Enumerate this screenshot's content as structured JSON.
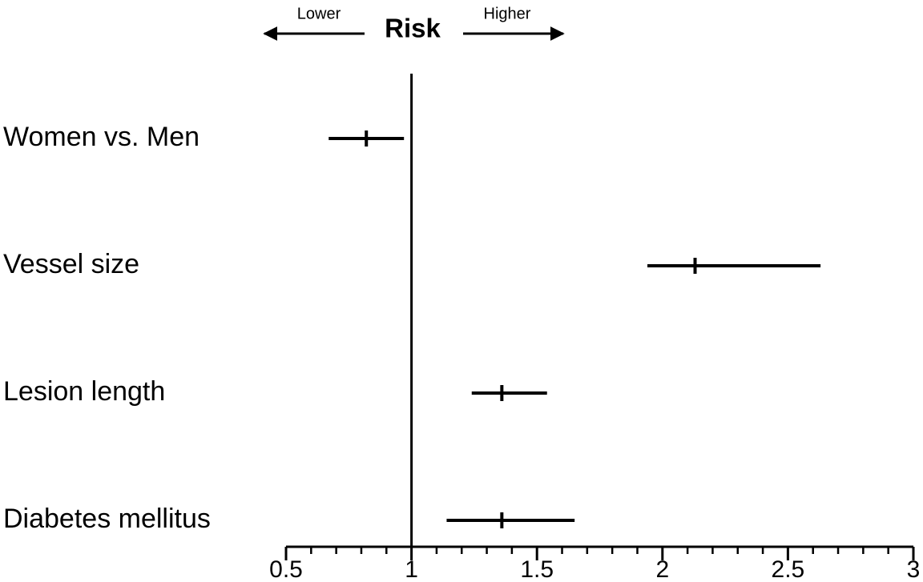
{
  "chart_data": {
    "type": "forest",
    "header": {
      "title": "Risk",
      "left_label": "Lower",
      "right_label": "Higher"
    },
    "categories": [
      "Women vs. Men",
      "Vessel size",
      "Lesion length",
      "Diabetes mellitus"
    ],
    "values": [
      0.82,
      2.13,
      1.36,
      1.36
    ],
    "lower": [
      0.67,
      1.94,
      1.24,
      1.14
    ],
    "upper": [
      0.97,
      2.63,
      1.54,
      1.65
    ],
    "color": "#000000",
    "reference_line": 1,
    "xlim": [
      0.5,
      3
    ],
    "xticks": [
      0.5,
      1,
      1.5,
      2,
      2.5,
      3
    ],
    "xminor_ticks": [
      0.6,
      0.7,
      0.8,
      0.9,
      1.1,
      1.2,
      1.3,
      1.4,
      1.6,
      1.7,
      1.8,
      1.9,
      2.1,
      2.2,
      2.3,
      2.4,
      2.6,
      2.7,
      2.8,
      2.9
    ]
  }
}
